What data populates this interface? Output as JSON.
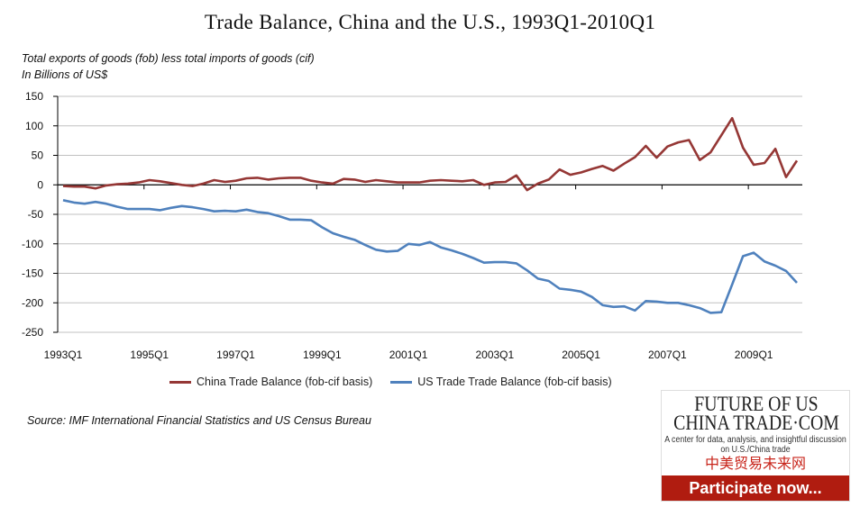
{
  "title": "Trade Balance, China and the U.S., 1993Q1-2010Q1",
  "subtitle_lines": [
    "Total exports of goods (fob) less total imports of goods (cif)",
    "In Billions of US$"
  ],
  "source": "Source:  IMF International Financial Statistics and US Census Bureau",
  "chart_data": {
    "type": "line",
    "title": "Trade Balance, China and the U.S., 1993Q1-2010Q1",
    "ylabel": "In Billions of US$",
    "ylim": [
      -250,
      150
    ],
    "yticks": [
      150,
      100,
      50,
      0,
      -50,
      -100,
      -150,
      -200,
      -250
    ],
    "xtick_labels": [
      "1993Q1",
      "1995Q1",
      "1997Q1",
      "1999Q1",
      "2001Q1",
      "2003Q1",
      "2005Q1",
      "2007Q1",
      "2009Q1"
    ],
    "grid": true,
    "legend_position": "bottom",
    "categories": [
      "1993Q1",
      "1993Q2",
      "1993Q3",
      "1993Q4",
      "1994Q1",
      "1994Q2",
      "1994Q3",
      "1994Q4",
      "1995Q1",
      "1995Q2",
      "1995Q3",
      "1995Q4",
      "1996Q1",
      "1996Q2",
      "1996Q3",
      "1996Q4",
      "1997Q1",
      "1997Q2",
      "1997Q3",
      "1997Q4",
      "1998Q1",
      "1998Q2",
      "1998Q3",
      "1998Q4",
      "1999Q1",
      "1999Q2",
      "1999Q3",
      "1999Q4",
      "2000Q1",
      "2000Q2",
      "2000Q3",
      "2000Q4",
      "2001Q1",
      "2001Q2",
      "2001Q3",
      "2001Q4",
      "2002Q1",
      "2002Q2",
      "2002Q3",
      "2002Q4",
      "2003Q1",
      "2003Q2",
      "2003Q3",
      "2003Q4",
      "2004Q1",
      "2004Q2",
      "2004Q3",
      "2004Q4",
      "2005Q1",
      "2005Q2",
      "2005Q3",
      "2005Q4",
      "2006Q1",
      "2006Q2",
      "2006Q3",
      "2006Q4",
      "2007Q1",
      "2007Q2",
      "2007Q3",
      "2007Q4",
      "2008Q1",
      "2008Q2",
      "2008Q3",
      "2008Q4",
      "2009Q1",
      "2009Q2",
      "2009Q3",
      "2009Q4",
      "2010Q1"
    ],
    "series": [
      {
        "name": "China Trade Balance (fob-cif basis)",
        "color": "#953735",
        "values": [
          -2,
          -3,
          -3,
          -6,
          -1,
          1,
          2,
          4,
          8,
          6,
          3,
          0,
          -2,
          2,
          8,
          5,
          7,
          11,
          12,
          9,
          11,
          12,
          12,
          7,
          4,
          2,
          10,
          9,
          5,
          8,
          6,
          4,
          4,
          4,
          7,
          8,
          7,
          6,
          8,
          0,
          4,
          5,
          16,
          -9,
          2,
          9,
          26,
          17,
          21,
          27,
          32,
          24,
          36,
          47,
          66,
          46,
          65,
          72,
          76,
          42,
          55,
          84,
          113,
          63,
          34,
          37,
          61,
          13,
          41
        ]
      },
      {
        "name": "US Trade Trade Balance (fob-cif basis)",
        "color": "#4f81bd",
        "values": [
          -26,
          -30,
          -32,
          -29,
          -32,
          -37,
          -41,
          -41,
          -41,
          -43,
          -39,
          -36,
          -38,
          -41,
          -45,
          -44,
          -45,
          -42,
          -46,
          -48,
          -53,
          -59,
          -59,
          -60,
          -72,
          -82,
          -88,
          -93,
          -102,
          -110,
          -113,
          -112,
          -100,
          -102,
          -97,
          -106,
          -111,
          -117,
          -124,
          -132,
          -131,
          -131,
          -133,
          -145,
          -159,
          -163,
          -176,
          -178,
          -181,
          -190,
          -204,
          -207,
          -206,
          -213,
          -197,
          -198,
          -200,
          -200,
          -204,
          -209,
          -217,
          -216,
          -169,
          -121,
          -115,
          -130,
          -137,
          -146,
          -166
        ]
      }
    ]
  },
  "ad": {
    "logo_line1": "FUTURE OF US",
    "logo_line2": "CHINA TRADE·COM",
    "tagline": "A center for data, analysis, and insightful discussion on U.S./China trade",
    "chinese": "中美贸易未来网",
    "button": "Participate now..."
  }
}
